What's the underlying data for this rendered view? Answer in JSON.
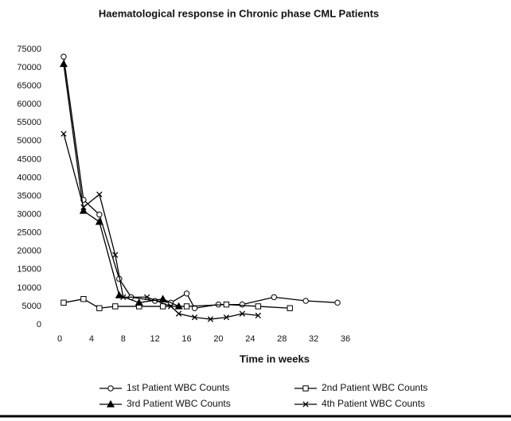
{
  "chart_data": {
    "type": "line",
    "title": "Haematological response in Chronic phase CML Patients",
    "x_label": "Time in weeks",
    "xlim": [
      0,
      36
    ],
    "xticks": [
      0,
      4,
      8,
      12,
      16,
      20,
      24,
      28,
      32,
      36
    ],
    "ylim": [
      0,
      75000
    ],
    "yticks": [
      0,
      5000,
      10000,
      15000,
      20000,
      25000,
      30000,
      35000,
      40000,
      45000,
      50000,
      55000,
      60000,
      65000,
      70000,
      75000
    ],
    "grid": false,
    "series": [
      {
        "name": "1st Patient WBC Counts",
        "color": "#000000",
        "marker": "circle",
        "x": [
          0.5,
          3,
          5,
          7.5,
          9,
          12,
          14,
          16,
          17,
          20,
          23,
          27,
          31,
          35
        ],
        "values": [
          73000,
          34000,
          30000,
          12500,
          7500,
          6500,
          6000,
          8500,
          4500,
          5500,
          5500,
          7500,
          6500,
          6000
        ]
      },
      {
        "name": "2nd Patient WBC Counts",
        "color": "#000000",
        "marker": "square",
        "x": [
          0.5,
          3,
          5,
          7,
          10,
          13,
          16,
          21,
          25,
          29
        ],
        "values": [
          6000,
          7000,
          4500,
          5000,
          5000,
          5000,
          5000,
          5500,
          5000,
          4500
        ]
      },
      {
        "name": "3rd Patient WBC Counts",
        "color": "#000000",
        "marker": "triangle",
        "x": [
          0.5,
          3,
          5,
          7.5,
          10,
          13,
          15
        ],
        "values": [
          71000,
          31000,
          28000,
          8000,
          6000,
          7000,
          5000
        ]
      },
      {
        "name": "4th Patient WBC Counts",
        "color": "#000000",
        "marker": "x",
        "x": [
          0.5,
          3,
          5,
          7,
          8,
          11,
          14,
          15,
          17,
          19,
          21,
          23,
          25
        ],
        "values": [
          52000,
          32000,
          35500,
          19000,
          7500,
          7500,
          5000,
          3000,
          2000,
          1500,
          2000,
          3000,
          2500
        ]
      }
    ]
  }
}
